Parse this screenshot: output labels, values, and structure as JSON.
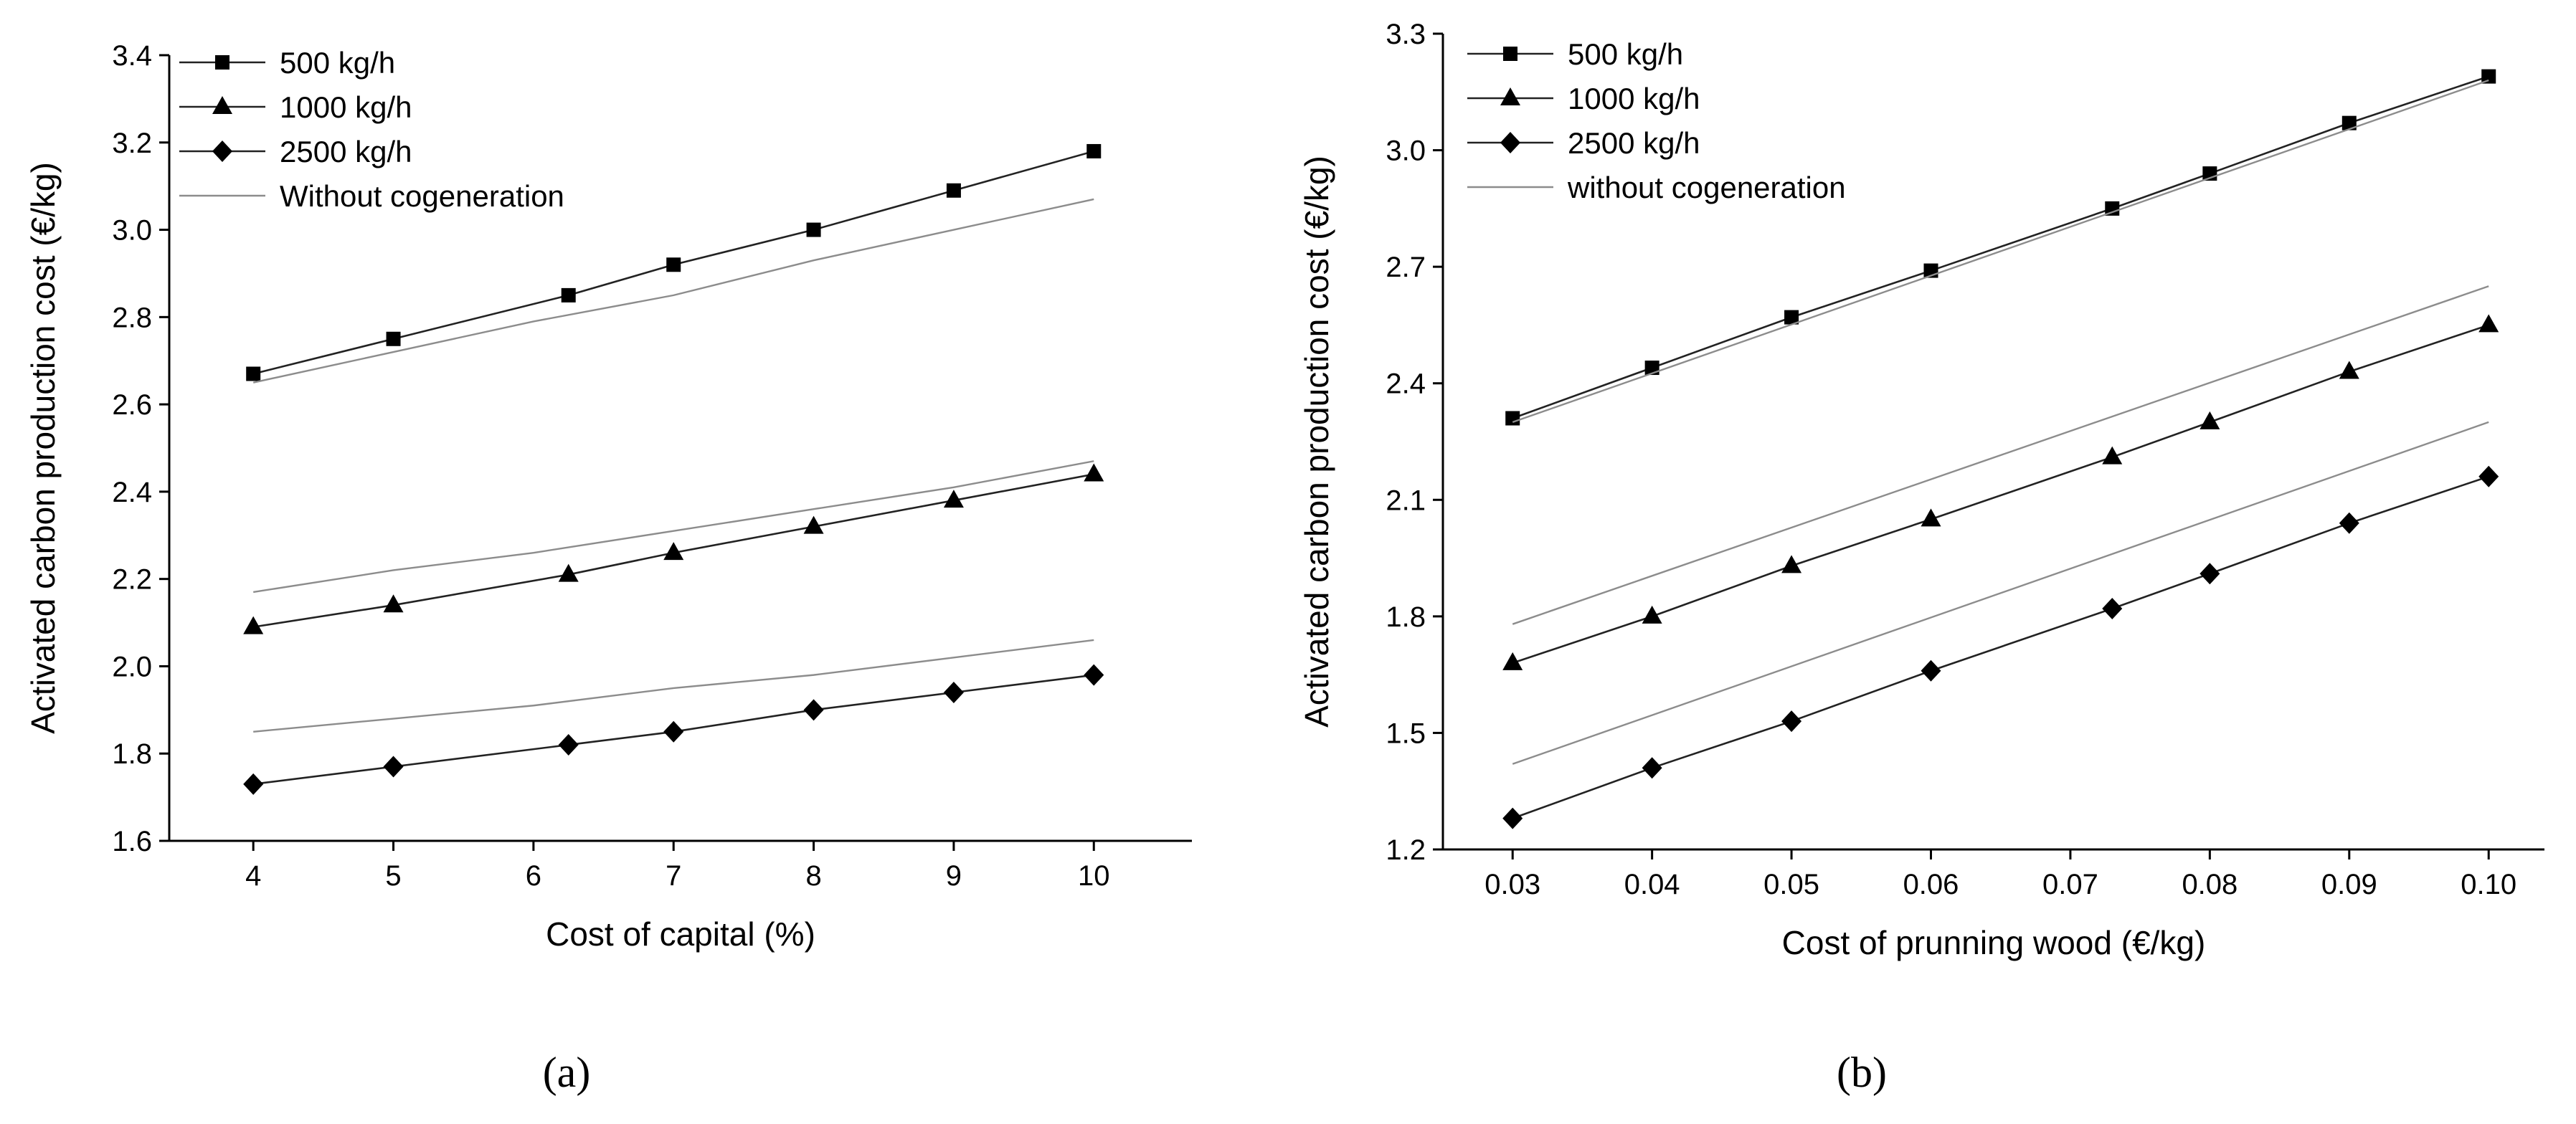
{
  "chart_data": [
    {
      "type": "line",
      "panel_label": "a",
      "xlabel": "Cost of capital (%)",
      "ylabel": "Activated carbon production cost (€/kg)",
      "xlim": [
        3.4,
        10.7
      ],
      "ylim": [
        1.6,
        3.4
      ],
      "xticks": [
        4,
        5,
        6,
        7,
        8,
        9,
        10
      ],
      "xtick_labels": [
        "4",
        "5",
        "6",
        "7",
        "8",
        "9",
        "10"
      ],
      "yticks": [
        1.6,
        1.8,
        2.0,
        2.2,
        2.4,
        2.6,
        2.8,
        3.0,
        3.2,
        3.4
      ],
      "ytick_labels": [
        "1.6",
        "1.8",
        "2.0",
        "2.2",
        "2.4",
        "2.6",
        "2.8",
        "3.0",
        "3.2",
        "3.4"
      ],
      "legend_position": "top-left",
      "x": [
        4,
        5,
        6.25,
        7,
        8,
        9,
        10
      ],
      "series": [
        {
          "name": "500 kg/h",
          "marker": "square",
          "values": [
            2.67,
            2.75,
            2.85,
            2.92,
            3.0,
            3.09,
            3.18
          ]
        },
        {
          "name": "1000 kg/h",
          "marker": "triangle",
          "values": [
            2.09,
            2.14,
            2.21,
            2.26,
            2.32,
            2.38,
            2.44
          ]
        },
        {
          "name": "2500 kg/h",
          "marker": "diamond",
          "values": [
            1.73,
            1.77,
            1.82,
            1.85,
            1.9,
            1.94,
            1.98
          ]
        },
        {
          "name": "Without cogeneration",
          "marker": "none",
          "style": "dash-dot",
          "lines": [
            {
              "x": [
                4,
                5,
                6,
                7,
                8,
                9,
                10
              ],
              "values": [
                2.65,
                2.72,
                2.79,
                2.85,
                2.93,
                3.0,
                3.07
              ]
            },
            {
              "x": [
                4,
                5,
                6,
                7,
                8,
                9,
                10
              ],
              "values": [
                2.17,
                2.22,
                2.26,
                2.31,
                2.36,
                2.41,
                2.47
              ]
            },
            {
              "x": [
                4,
                5,
                6,
                7,
                8,
                9,
                10
              ],
              "values": [
                1.85,
                1.88,
                1.91,
                1.95,
                1.98,
                2.02,
                2.06
              ]
            }
          ]
        }
      ]
    },
    {
      "type": "line",
      "panel_label": "b",
      "xlabel": "Cost of prunning wood (€/kg)",
      "ylabel": "Activated carbon production cost (€/kg)",
      "xlim": [
        0.025,
        0.104
      ],
      "ylim": [
        1.2,
        3.3
      ],
      "xticks": [
        0.03,
        0.04,
        0.05,
        0.06,
        0.07,
        0.08,
        0.09,
        0.1
      ],
      "xtick_labels": [
        "0.03",
        "0.04",
        "0.05",
        "0.06",
        "0.07",
        "0.08",
        "0.09",
        "0.10"
      ],
      "yticks": [
        1.2,
        1.5,
        1.8,
        2.1,
        2.4,
        2.7,
        3.0,
        3.3
      ],
      "ytick_labels": [
        "1.2",
        "1.5",
        "1.8",
        "2.1",
        "2.4",
        "2.7",
        "3.0",
        "3.3"
      ],
      "legend_position": "top-left",
      "x": [
        0.03,
        0.04,
        0.05,
        0.06,
        0.073,
        0.08,
        0.09,
        0.1
      ],
      "series": [
        {
          "name": "500 kg/h",
          "marker": "square",
          "values": [
            2.31,
            2.44,
            2.57,
            2.69,
            2.85,
            2.94,
            3.07,
            3.19
          ]
        },
        {
          "name": "1000 kg/h",
          "marker": "triangle",
          "values": [
            1.68,
            1.8,
            1.93,
            2.05,
            2.21,
            2.3,
            2.43,
            2.55
          ]
        },
        {
          "name": "2500 kg/h",
          "marker": "diamond",
          "values": [
            1.28,
            1.41,
            1.53,
            1.66,
            1.82,
            1.91,
            2.04,
            2.16
          ]
        },
        {
          "name": "without cogeneration",
          "marker": "none",
          "style": "dash-dot",
          "lines": [
            {
              "x": [
                0.03,
                0.1
              ],
              "values": [
                2.3,
                3.18
              ]
            },
            {
              "x": [
                0.03,
                0.1
              ],
              "values": [
                1.78,
                2.65
              ]
            },
            {
              "x": [
                0.03,
                0.1
              ],
              "values": [
                1.42,
                2.3
              ]
            }
          ]
        }
      ]
    }
  ],
  "captions": [
    "(a)",
    "(b)"
  ]
}
